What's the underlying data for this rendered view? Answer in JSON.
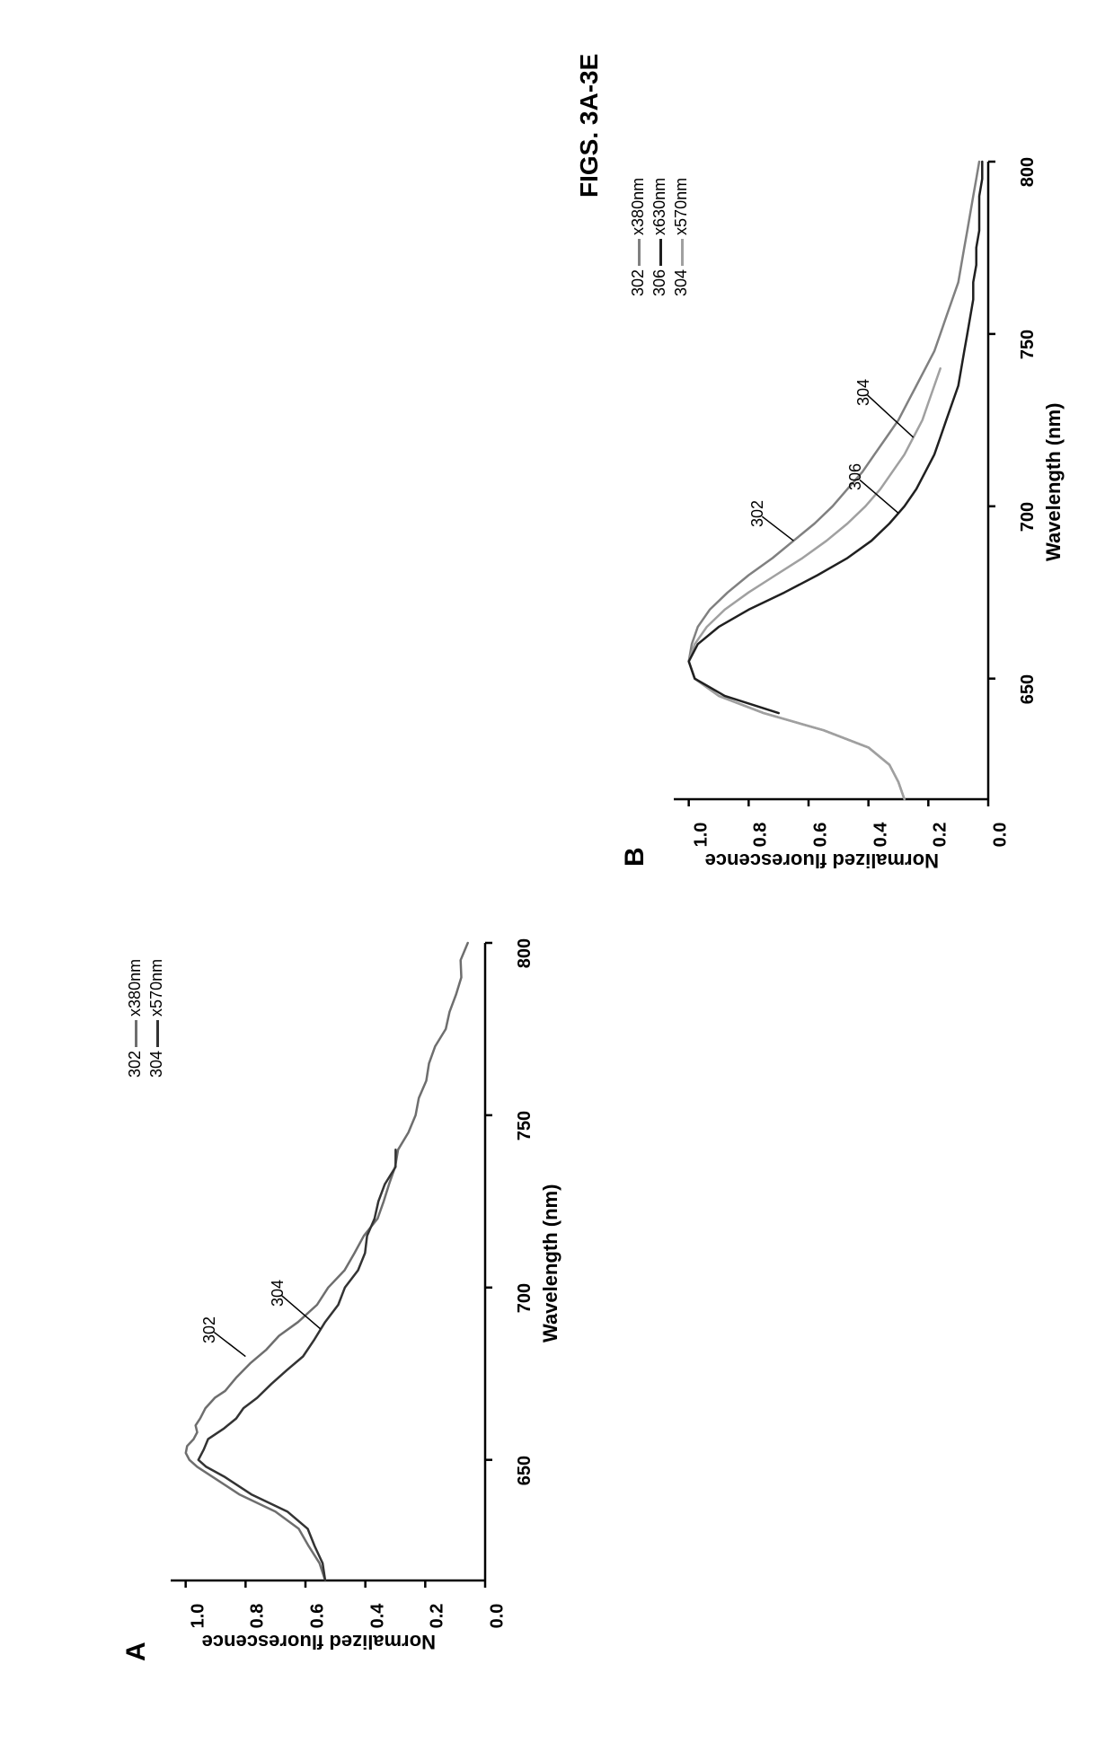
{
  "figure_title": "FIGS. 3A-3E",
  "panels": {
    "A": {
      "label": "A"
    },
    "B": {
      "label": "B"
    }
  },
  "chartA": {
    "type": "line",
    "xlabel": "Wavelength (nm)",
    "ylabel": "Normalized fluorescence",
    "xlim": [
      615,
      800
    ],
    "ylim": [
      0.0,
      1.05
    ],
    "xticks": [
      650,
      700,
      750,
      800
    ],
    "yticks": [
      0.0,
      0.2,
      0.4,
      0.6,
      0.8,
      1.0
    ],
    "xtick_labels": [
      "650",
      "700",
      "750",
      "800"
    ],
    "ytick_labels": [
      "0.0",
      "0.2",
      "0.4",
      "0.6",
      "0.8",
      "1.0"
    ],
    "background_color": "#ffffff",
    "axis_color": "#000000",
    "axis_width": 2.5,
    "label_fontsize": 22,
    "tick_fontsize": 20,
    "series": [
      {
        "id": "302",
        "legend_label": "x380nm",
        "annot_label": "302",
        "color": "#6e6e6e",
        "line_width": 2.5,
        "noisy": true,
        "x": [
          615,
          620,
          625,
          630,
          635,
          640,
          645,
          648,
          650,
          652,
          654,
          656,
          658,
          660,
          662,
          665,
          668,
          670,
          674,
          678,
          682,
          686,
          690,
          695,
          700,
          705,
          710,
          715,
          720,
          725,
          730,
          735,
          740,
          745,
          750,
          755,
          760,
          765,
          770,
          775,
          780,
          785,
          790,
          795,
          800
        ],
        "y": [
          0.54,
          0.56,
          0.58,
          0.62,
          0.7,
          0.82,
          0.92,
          0.96,
          0.98,
          1.0,
          0.99,
          0.98,
          0.97,
          0.96,
          0.95,
          0.93,
          0.9,
          0.88,
          0.83,
          0.78,
          0.73,
          0.68,
          0.63,
          0.57,
          0.52,
          0.47,
          0.43,
          0.4,
          0.37,
          0.34,
          0.32,
          0.3,
          0.28,
          0.26,
          0.24,
          0.22,
          0.2,
          0.18,
          0.16,
          0.14,
          0.12,
          0.1,
          0.08,
          0.07,
          0.06
        ]
      },
      {
        "id": "304",
        "legend_label": "x570nm",
        "annot_label": "304",
        "color": "#333333",
        "line_width": 2.5,
        "noisy": true,
        "x": [
          615,
          620,
          625,
          630,
          635,
          640,
          645,
          648,
          650,
          653,
          656,
          659,
          662,
          665,
          668,
          672,
          676,
          680,
          685,
          690,
          695,
          700,
          705,
          710,
          715,
          720,
          725,
          730,
          735,
          740
        ],
        "y": [
          0.54,
          0.55,
          0.56,
          0.59,
          0.66,
          0.78,
          0.88,
          0.93,
          0.95,
          0.94,
          0.92,
          0.88,
          0.84,
          0.8,
          0.76,
          0.71,
          0.66,
          0.62,
          0.57,
          0.53,
          0.49,
          0.46,
          0.43,
          0.41,
          0.39,
          0.37,
          0.35,
          0.33,
          0.31,
          0.3
        ]
      }
    ],
    "legend": [
      {
        "id": "302",
        "prefix": "302",
        "suffix": "x380nm",
        "color": "#6e6e6e"
      },
      {
        "id": "304",
        "prefix": "304",
        "suffix": "x570nm",
        "color": "#333333"
      }
    ],
    "annotations": [
      {
        "id": "302",
        "label": "302",
        "target_x": 680,
        "target_y": 0.8
      },
      {
        "id": "304",
        "label": "304",
        "target_x": 688,
        "target_y": 0.55
      }
    ]
  },
  "chartB": {
    "type": "line",
    "xlabel": "Wavelength (nm)",
    "ylabel": "Normalized fluorescence",
    "xlim": [
      615,
      800
    ],
    "ylim": [
      0.0,
      1.05
    ],
    "xticks": [
      650,
      700,
      750,
      800
    ],
    "yticks": [
      0.0,
      0.2,
      0.4,
      0.6,
      0.8,
      1.0
    ],
    "xtick_labels": [
      "650",
      "700",
      "750",
      "800"
    ],
    "ytick_labels": [
      "0.0",
      "0.2",
      "0.4",
      "0.6",
      "0.8",
      "1.0"
    ],
    "background_color": "#ffffff",
    "axis_color": "#000000",
    "axis_width": 2.5,
    "label_fontsize": 22,
    "tick_fontsize": 20,
    "series": [
      {
        "id": "302",
        "legend_label": "x380nm",
        "annot_label": "302",
        "color": "#808080",
        "line_width": 2.5,
        "noisy": false,
        "x": [
          615,
          620,
          625,
          630,
          635,
          640,
          645,
          650,
          655,
          660,
          665,
          670,
          675,
          680,
          685,
          690,
          695,
          700,
          705,
          710,
          715,
          720,
          725,
          730,
          735,
          740,
          745,
          750,
          755,
          760,
          765,
          770,
          775,
          780,
          785,
          790,
          795,
          800
        ],
        "y": [
          0.28,
          0.3,
          0.33,
          0.4,
          0.55,
          0.75,
          0.9,
          0.98,
          1.0,
          0.99,
          0.97,
          0.93,
          0.87,
          0.8,
          0.72,
          0.65,
          0.58,
          0.52,
          0.47,
          0.42,
          0.38,
          0.34,
          0.3,
          0.27,
          0.24,
          0.21,
          0.18,
          0.16,
          0.14,
          0.12,
          0.1,
          0.09,
          0.08,
          0.07,
          0.06,
          0.05,
          0.04,
          0.03
        ]
      },
      {
        "id": "304",
        "legend_label": "x570nm",
        "annot_label": "304",
        "color": "#a0a0a0",
        "line_width": 2.5,
        "noisy": false,
        "x": [
          615,
          620,
          625,
          630,
          635,
          640,
          645,
          650,
          655,
          660,
          665,
          670,
          675,
          680,
          685,
          690,
          695,
          700,
          705,
          710,
          715,
          720,
          725,
          730,
          735,
          740
        ],
        "y": [
          0.28,
          0.3,
          0.33,
          0.4,
          0.55,
          0.75,
          0.9,
          0.98,
          1.0,
          0.98,
          0.94,
          0.88,
          0.8,
          0.71,
          0.62,
          0.54,
          0.47,
          0.41,
          0.36,
          0.32,
          0.28,
          0.25,
          0.22,
          0.2,
          0.18,
          0.16
        ]
      },
      {
        "id": "306",
        "legend_label": "x630nm",
        "annot_label": "306",
        "color": "#202020",
        "line_width": 2.5,
        "noisy": false,
        "x": [
          640,
          645,
          650,
          655,
          660,
          665,
          670,
          675,
          680,
          685,
          690,
          695,
          700,
          705,
          710,
          715,
          720,
          725,
          730,
          735,
          740,
          745,
          750,
          755,
          760,
          765,
          770,
          775,
          780,
          785,
          790,
          795,
          800
        ],
        "y": [
          0.7,
          0.88,
          0.98,
          1.0,
          0.97,
          0.9,
          0.8,
          0.68,
          0.57,
          0.47,
          0.39,
          0.33,
          0.28,
          0.24,
          0.21,
          0.18,
          0.16,
          0.14,
          0.12,
          0.1,
          0.09,
          0.08,
          0.07,
          0.06,
          0.05,
          0.05,
          0.04,
          0.04,
          0.03,
          0.03,
          0.03,
          0.02,
          0.02
        ]
      }
    ],
    "legend": [
      {
        "id": "302",
        "prefix": "302",
        "suffix": "x380nm",
        "color": "#808080"
      },
      {
        "id": "306",
        "prefix": "306",
        "suffix": "x630nm",
        "color": "#202020"
      },
      {
        "id": "304",
        "prefix": "304",
        "suffix": "x570nm",
        "color": "#a0a0a0"
      }
    ],
    "annotations": [
      {
        "id": "302",
        "label": "302",
        "target_x": 690,
        "target_y": 0.65
      },
      {
        "id": "306",
        "label": "306",
        "target_x": 698,
        "target_y": 0.3
      },
      {
        "id": "304",
        "label": "304",
        "target_x": 720,
        "target_y": 0.25
      }
    ]
  }
}
